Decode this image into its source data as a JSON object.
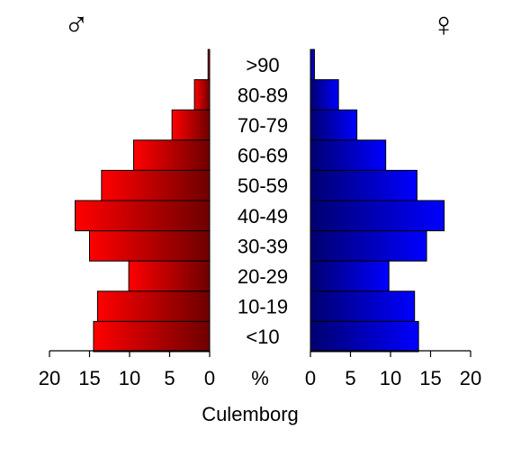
{
  "chart_data": {
    "type": "bar",
    "subtype": "population-pyramid",
    "title": "Culemborg",
    "unit_label": "%",
    "categories": [
      ">90",
      "80-89",
      "70-79",
      "60-69",
      "50-59",
      "40-49",
      "30-39",
      "20-29",
      "10-19",
      "<10"
    ],
    "series": [
      {
        "symbol": "♂",
        "side": "left",
        "colors": {
          "light": "#ff0000",
          "dark": "#6e0000"
        },
        "values": [
          0.2,
          1.9,
          4.7,
          9.5,
          13.5,
          16.8,
          15.0,
          10.1,
          14.0,
          14.5
        ]
      },
      {
        "symbol": "♀",
        "side": "right",
        "colors": {
          "light": "#0000ff",
          "dark": "#000070"
        },
        "values": [
          0.5,
          3.5,
          5.8,
          9.4,
          13.3,
          16.7,
          14.5,
          9.8,
          13.0,
          13.5
        ]
      }
    ],
    "xlim": [
      0,
      20
    ],
    "x_ticks": [
      0,
      5,
      10,
      15,
      20
    ],
    "x_tick_labels": [
      "0",
      "5",
      "10",
      "15",
      "20"
    ],
    "grid": false,
    "legend": "none"
  }
}
